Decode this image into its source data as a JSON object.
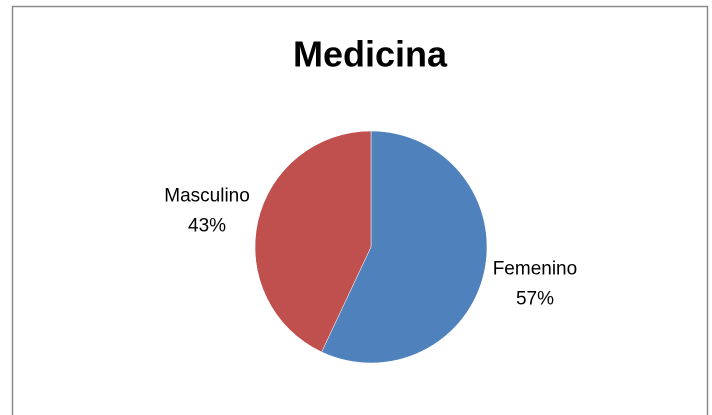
{
  "chart_data": {
    "type": "pie",
    "title": "Medicina",
    "categories": [
      "Femenino",
      "Masculino"
    ],
    "values": [
      57,
      43
    ],
    "value_labels": [
      "57%",
      "43%"
    ],
    "colors": [
      "#4f81bd",
      "#c0504d"
    ]
  }
}
